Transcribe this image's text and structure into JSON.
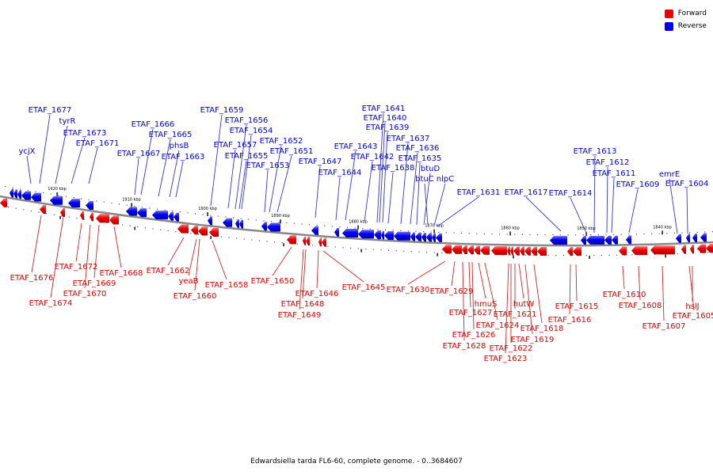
{
  "caption": "Edwardsiella tarda FL6-60, complete genome. - 0..3684607",
  "legend": {
    "forward_label": "Forward",
    "reverse_label": "Reverse",
    "forward_color": "#ee0000",
    "reverse_color": "#0000ee"
  },
  "ticks": [
    "1920 kbp",
    "1910 kbp",
    "1900 kbp",
    "1890 kbp",
    "1880 kbp",
    "1870 kbp",
    "1860 kbp",
    "1850 kbp",
    "1840 kbp"
  ],
  "reverse_genes": [
    "ycjX",
    "ETAF_1677",
    "tyrR",
    "ETAF_1673",
    "ETAF_1671",
    "ETAF_1667",
    "ETAF_1666",
    "ETAF_1665",
    "phsB",
    "ETAF_1663",
    "ETAF_1659",
    "ETAF_1657",
    "ETAF_1656",
    "ETAF_1655",
    "ETAF_1654",
    "ETAF_1653",
    "ETAF_1652",
    "ETAF_1651",
    "ETAF_1647",
    "ETAF_1644",
    "ETAF_1643",
    "ETAF_1642",
    "ETAF_1641",
    "ETAF_1640",
    "ETAF_1639",
    "ETAF_1638",
    "ETAF_1637",
    "ETAF_1636",
    "ETAF_1635",
    "btuD",
    "btuC",
    "nlpC",
    "ETAF_1631",
    "ETAF_1617",
    "ETAF_1614",
    "ETAF_1613",
    "ETAF_1612",
    "ETAF_1611",
    "ETAF_1609",
    "emrE",
    "ETAF_1604"
  ],
  "forward_genes": [
    "ETAF_1676",
    "ETAF_1674",
    "ETAF_1672",
    "ETAF_1670",
    "ETAF_1669",
    "ETAF_1668",
    "ETAF_1662",
    "yeaB",
    "ETAF_1660",
    "ETAF_1658",
    "ETAF_1650",
    "ETAF_1649",
    "ETAF_1648",
    "ETAF_1646",
    "ETAF_1645",
    "ETAF_1630",
    "ETAF_1629",
    "ETAF_1628",
    "ETAF_1627",
    "ETAF_1626",
    "hmuS",
    "ETAF_1624",
    "ETAF_1623",
    "ETAF_1622",
    "ETAF_1621",
    "hutW",
    "ETAF_1619",
    "ETAF_1618",
    "ETAF_1616",
    "ETAF_1615",
    "ETAF_1610",
    "ETAF_1608",
    "ETAF_1607",
    "ETAF_1605",
    "hslJ"
  ]
}
